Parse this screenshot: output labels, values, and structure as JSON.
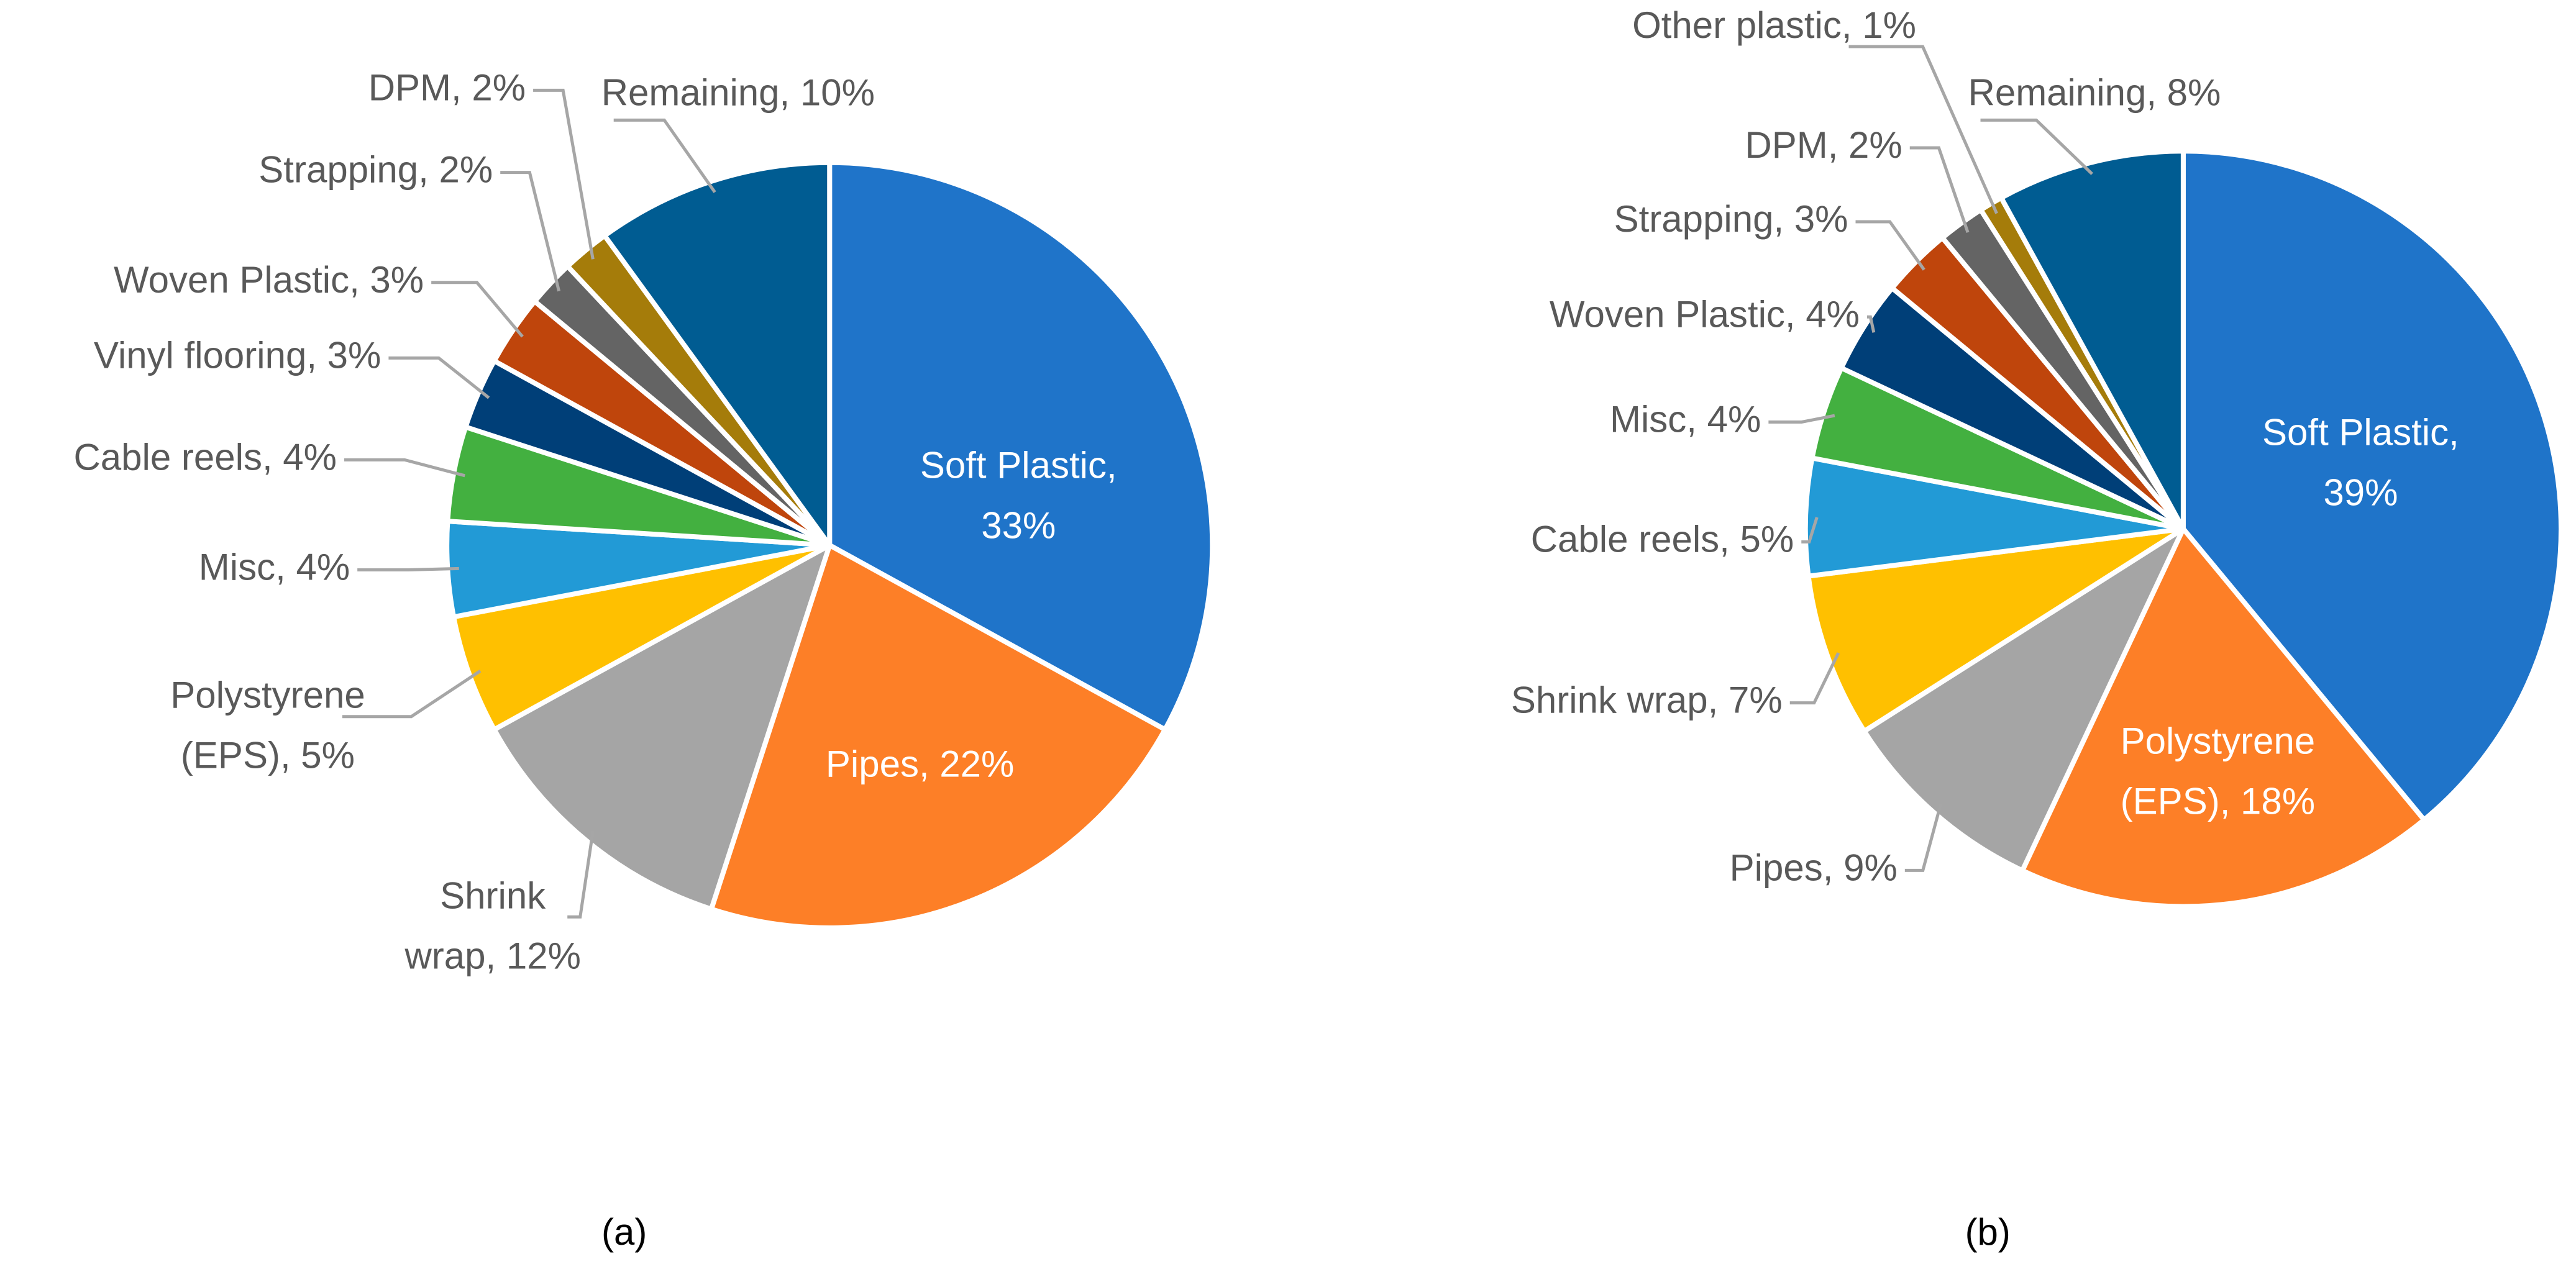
{
  "chart_data": [
    {
      "type": "pie",
      "title": "(a)",
      "categories": [
        "Soft Plastic",
        "Pipes",
        "Shrink wrap",
        "Polystyrene (EPS)",
        "Misc",
        "Cable reels",
        "Vinyl flooring",
        "Woven Plastic",
        "Strapping",
        "DPM",
        "Remaining"
      ],
      "values": [
        33,
        22,
        12,
        5,
        4,
        4,
        3,
        3,
        2,
        2,
        10
      ],
      "value_labels": [
        "Soft Plastic,\n33%",
        "Pipes, 22%",
        "Shrink\nwrap, 12%",
        "Polystyrene\n(EPS), 5%",
        "Misc, 4%",
        "Cable reels, 4%",
        "Vinyl flooring, 3%",
        "Woven Plastic, 3%",
        "Strapping, 2%",
        "DPM, 2%",
        "Remaining, 10%"
      ],
      "colors": [
        "#1f74c9",
        "#fd7f27",
        "#a5a5a5",
        "#ffc000",
        "#229ad6",
        "#43b040",
        "#003f78",
        "#bf450c",
        "#646464",
        "#a57c0a",
        "#005c92"
      ]
    },
    {
      "type": "pie",
      "title": "(b)",
      "categories": [
        "Soft Plastic",
        "Polystyrene (EPS)",
        "Pipes",
        "Shrink wrap",
        "Cable reels",
        "Misc",
        "Woven Plastic",
        "Strapping",
        "DPM",
        "Other plastic",
        "Remaining"
      ],
      "values": [
        39,
        18,
        9,
        7,
        5,
        4,
        4,
        3,
        2,
        1,
        8
      ],
      "value_labels": [
        "Soft Plastic,\n39%",
        "Polystyrene\n(EPS), 18%",
        "Pipes, 9%",
        "Shrink wrap, 7%",
        "Cable reels, 5%",
        "Misc, 4%",
        "Woven Plastic, 4%",
        "Strapping, 3%",
        "DPM, 2%",
        "Other plastic, 1%",
        "Remaining, 8%"
      ],
      "colors": [
        "#1f74c9",
        "#fd7f27",
        "#a5a5a5",
        "#ffc000",
        "#229ad6",
        "#43b040",
        "#003f78",
        "#bf450c",
        "#646464",
        "#a57c0a",
        "#005c92"
      ]
    }
  ]
}
